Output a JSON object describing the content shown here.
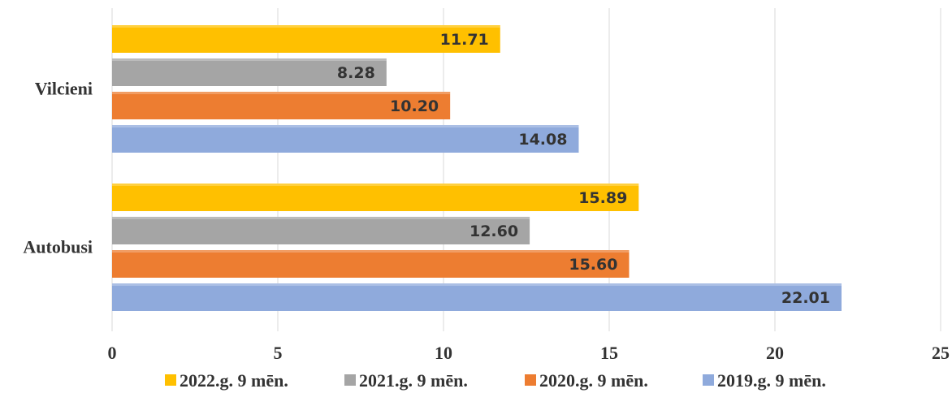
{
  "chart_data": {
    "type": "bar",
    "orientation": "horizontal",
    "categories": [
      "Vilcieni",
      "Autobusi"
    ],
    "series": [
      {
        "name": "2022.g. 9 mēn.",
        "color": "#ffc000",
        "values": [
          11.71,
          15.89
        ],
        "labels": [
          "11.71",
          "15.89"
        ]
      },
      {
        "name": "2021.g. 9 mēn.",
        "color": "#a5a5a5",
        "values": [
          8.28,
          12.6
        ],
        "labels": [
          "8.28",
          "12.60"
        ]
      },
      {
        "name": "2020.g. 9 mēn.",
        "color": "#ed7d31",
        "values": [
          10.2,
          15.6
        ],
        "labels": [
          "10.20",
          "15.60"
        ]
      },
      {
        "name": "2019.g. 9 mēn.",
        "color": "#8faadc",
        "values": [
          14.08,
          22.01
        ],
        "labels": [
          "14.08",
          "22.01"
        ]
      }
    ],
    "xlim": [
      0,
      25
    ],
    "xticks": [
      "0",
      "5",
      "10",
      "15",
      "20",
      "25"
    ],
    "grid": true,
    "legend_position": "bottom",
    "title": "",
    "xlabel": "",
    "ylabel": ""
  }
}
